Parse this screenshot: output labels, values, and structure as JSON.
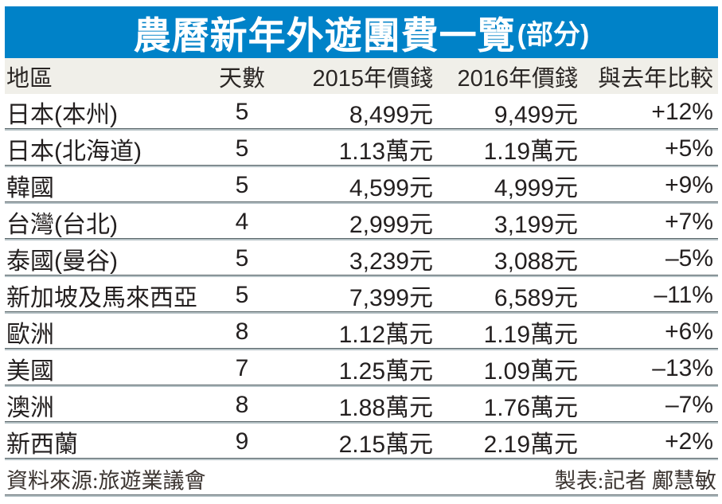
{
  "title": {
    "main": "農曆新年外遊團費一覽",
    "suffix": "(部分)"
  },
  "table": {
    "headers": [
      "地區",
      "天數",
      "2015年價錢",
      "2016年價錢",
      "與去年比較"
    ],
    "rows": [
      {
        "region": "日本(本州)",
        "days": "5",
        "price2015": "8,499元",
        "price2016": "9,499元",
        "change": "+12%"
      },
      {
        "region": "日本(北海道)",
        "days": "5",
        "price2015": "1.13萬元",
        "price2016": "1.19萬元",
        "change": "+5%"
      },
      {
        "region": "韓國",
        "days": "5",
        "price2015": "4,599元",
        "price2016": "4,999元",
        "change": "+9%"
      },
      {
        "region": "台灣(台北)",
        "days": "4",
        "price2015": "2,999元",
        "price2016": "3,199元",
        "change": "+7%"
      },
      {
        "region": "泰國(曼谷)",
        "days": "5",
        "price2015": "3,239元",
        "price2016": "3,088元",
        "change": "–5%"
      },
      {
        "region": "新加坡及馬來西亞",
        "days": "5",
        "price2015": "7,399元",
        "price2016": "6,589元",
        "change": "–11%"
      },
      {
        "region": "歐洲",
        "days": "8",
        "price2015": "1.12萬元",
        "price2016": "1.19萬元",
        "change": "+6%"
      },
      {
        "region": "美國",
        "days": "7",
        "price2015": "1.25萬元",
        "price2016": "1.09萬元",
        "change": "–13%"
      },
      {
        "region": "澳洲",
        "days": "8",
        "price2015": "1.88萬元",
        "price2016": "1.76萬元",
        "change": "–7%"
      },
      {
        "region": "新西蘭",
        "days": "9",
        "price2015": "2.15萬元",
        "price2016": "2.19萬元",
        "change": "+2%"
      }
    ]
  },
  "footer": {
    "source": "資料來源:旅遊業議會",
    "credit": "製表:記者 鄺慧敏"
  },
  "colors": {
    "title_bar_blue": "#0082c8",
    "title_text": "#ffffff",
    "header_row_bg": "#f0efe9",
    "body_text": "#231f1f",
    "separator_dark": "#5a666a",
    "separator_light": "#b5c1c5"
  }
}
